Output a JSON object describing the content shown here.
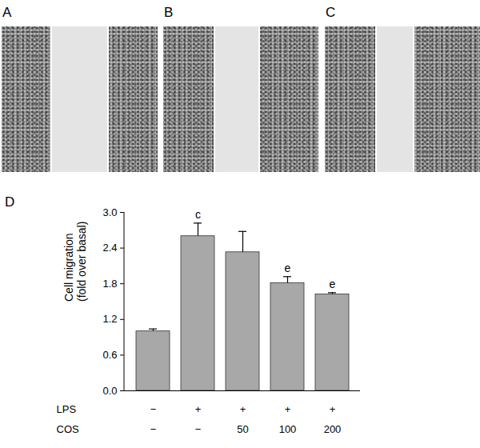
{
  "panels": [
    {
      "label": "A"
    },
    {
      "label": "B"
    },
    {
      "label": "C"
    }
  ],
  "chart_data": {
    "type": "bar",
    "panel_label": "D",
    "ylabel": "Cell migration\n(fold over basal)",
    "categories": [
      null,
      null,
      null,
      null,
      null
    ],
    "values": [
      1.0,
      2.6,
      2.33,
      1.81,
      1.62
    ],
    "errors": [
      0.04,
      0.22,
      0.35,
      0.11,
      0.03
    ],
    "significance": [
      null,
      "c",
      null,
      "e",
      "e"
    ],
    "treatments": [
      {
        "label": "LPS",
        "values": [
          "−",
          "+",
          "+",
          "+",
          "+"
        ]
      },
      {
        "label": "COS",
        "values": [
          "−",
          "−",
          "50",
          "100",
          "200"
        ]
      }
    ],
    "color": "#a8a8a8",
    "ylim": [
      0,
      3
    ],
    "yticks": [
      {
        "value": 0,
        "label": "0.0"
      },
      0.6,
      1.2,
      1.8,
      2.4,
      {
        "value": 3,
        "label": "3.0"
      }
    ],
    "grid": false
  }
}
